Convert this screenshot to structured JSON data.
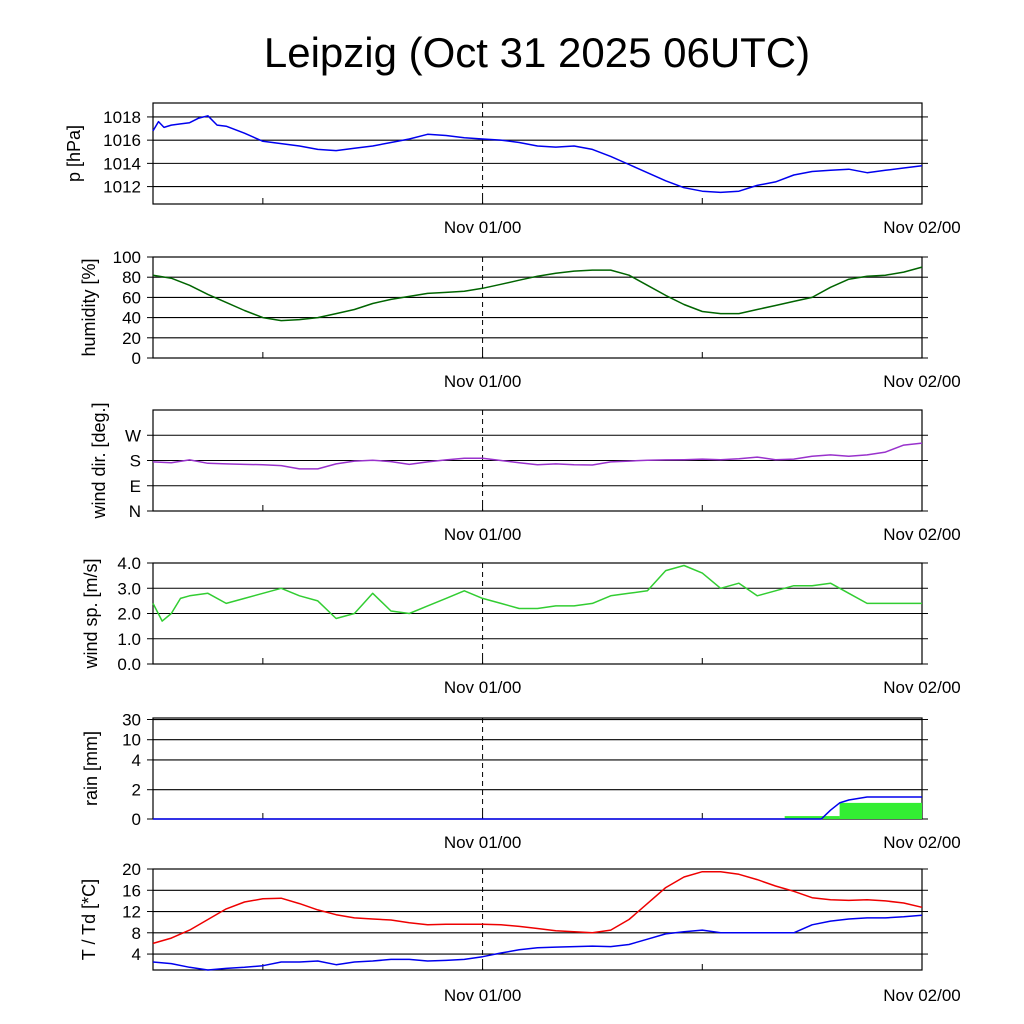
{
  "chart_data": {
    "title": "Leipzig (Oct 31 2025 06UTC)",
    "x_axis": {
      "range_hours": [
        0,
        42
      ],
      "day_boundary_hour": 18,
      "tick_hours": [
        6,
        18,
        30,
        42
      ],
      "labels": [
        {
          "hour": 18,
          "text": "Nov 01/00"
        },
        {
          "hour": 42,
          "text": "Nov 02/00"
        }
      ]
    },
    "panels": [
      {
        "id": "pressure",
        "type": "line",
        "ylabel": "p [hPa]",
        "ylim": [
          1010.5,
          1019.2
        ],
        "grid": [
          1012,
          1014,
          1016,
          1018
        ],
        "ticks": [
          {
            "v": 1018,
            "t": "1018"
          },
          {
            "v": 1016,
            "t": "1016"
          },
          {
            "v": 1014,
            "t": "1014"
          },
          {
            "v": 1012,
            "t": "1012"
          }
        ],
        "series": [
          {
            "name": "pressure",
            "color": "#0000ee",
            "x": [
              0,
              0.3,
              0.6,
              1,
              1.5,
              2,
              2.5,
              3,
              3.5,
              4,
              5,
              6,
              7,
              8,
              9,
              10,
              11,
              12,
              13,
              14,
              15,
              16,
              17,
              18,
              19,
              20,
              21,
              22,
              23,
              24,
              25,
              26,
              27,
              28,
              29,
              30,
              31,
              32,
              33,
              34,
              35,
              36,
              37,
              38,
              39,
              40,
              41,
              42
            ],
            "values": [
              1016.8,
              1017.6,
              1017.1,
              1017.3,
              1017.4,
              1017.5,
              1017.9,
              1018.1,
              1017.3,
              1017.2,
              1016.6,
              1015.9,
              1015.7,
              1015.5,
              1015.2,
              1015.1,
              1015.3,
              1015.5,
              1015.8,
              1016.1,
              1016.5,
              1016.4,
              1016.2,
              1016.1,
              1016.0,
              1015.8,
              1015.5,
              1015.4,
              1015.5,
              1015.2,
              1014.6,
              1013.9,
              1013.2,
              1012.5,
              1011.9,
              1011.6,
              1011.5,
              1011.6,
              1012.1,
              1012.4,
              1013.0,
              1013.3,
              1013.4,
              1013.5,
              1013.2,
              1013.4,
              1013.6,
              1013.8
            ]
          }
        ]
      },
      {
        "id": "humidity",
        "type": "line",
        "ylabel": "humidity [%]",
        "ylim": [
          0,
          100
        ],
        "grid": [
          20,
          40,
          60,
          80,
          100
        ],
        "ticks": [
          {
            "v": 100,
            "t": "100"
          },
          {
            "v": 80,
            "t": "80"
          },
          {
            "v": 60,
            "t": "60"
          },
          {
            "v": 40,
            "t": "40"
          },
          {
            "v": 20,
            "t": "20"
          },
          {
            "v": 0,
            "t": "0"
          }
        ],
        "series": [
          {
            "name": "humidity",
            "color": "#006400",
            "x": [
              0,
              1,
              2,
              3,
              4,
              5,
              6,
              7,
              8,
              9,
              10,
              11,
              12,
              13,
              14,
              15,
              16,
              17,
              18,
              19,
              20,
              21,
              22,
              23,
              24,
              25,
              26,
              27,
              28,
              29,
              30,
              31,
              32,
              33,
              34,
              35,
              36,
              37,
              38,
              39,
              40,
              41,
              42
            ],
            "values": [
              82,
              79,
              72,
              63,
              55,
              47,
              40,
              37,
              38,
              40,
              44,
              48,
              54,
              58,
              61,
              64,
              65,
              66,
              69,
              73,
              77,
              81,
              84,
              86,
              87,
              87,
              82,
              72,
              62,
              53,
              46,
              44,
              44,
              48,
              52,
              56,
              60,
              70,
              78,
              81,
              82,
              85,
              90
            ]
          }
        ]
      },
      {
        "id": "wind_dir",
        "type": "line",
        "ylabel": "wind dir. [deg.]",
        "ylim": [
          0,
          360
        ],
        "grid": [
          90,
          180,
          270
        ],
        "ticks": [
          {
            "v": 270,
            "t": "W"
          },
          {
            "v": 180,
            "t": "S"
          },
          {
            "v": 90,
            "t": "E"
          },
          {
            "v": 0,
            "t": "N"
          }
        ],
        "series": [
          {
            "name": "wind direction",
            "color": "#9932cc",
            "x": [
              0,
              1,
              2,
              3,
              4,
              5,
              6,
              7,
              8,
              9,
              10,
              11,
              12,
              13,
              14,
              15,
              16,
              17,
              18,
              19,
              20,
              21,
              22,
              23,
              24,
              25,
              26,
              27,
              28,
              29,
              30,
              31,
              32,
              33,
              34,
              35,
              36,
              37,
              38,
              39,
              40,
              41,
              42
            ],
            "values": [
              175,
              172,
              182,
              170,
              168,
              166,
              165,
              162,
              150,
              150,
              168,
              178,
              181,
              176,
              166,
              175,
              182,
              188,
              188,
              180,
              172,
              165,
              168,
              165,
              164,
              175,
              178,
              181,
              182,
              183,
              185,
              183,
              186,
              192,
              183,
              185,
              195,
              200,
              195,
              200,
              210,
              235,
              242
            ]
          }
        ]
      },
      {
        "id": "wind_speed",
        "type": "line",
        "ylabel": "wind sp. [m/s]",
        "ylim": [
          0,
          4.0
        ],
        "grid": [
          1.0,
          2.0,
          3.0
        ],
        "ticks": [
          {
            "v": 4.0,
            "t": "4.0"
          },
          {
            "v": 3.0,
            "t": "3.0"
          },
          {
            "v": 2.0,
            "t": "2.0"
          },
          {
            "v": 1.0,
            "t": "1.0"
          },
          {
            "v": 0.0,
            "t": "0.0"
          }
        ],
        "series": [
          {
            "name": "wind speed",
            "color": "#32cd32",
            "x": [
              0,
              0.5,
              1,
              1.5,
              2,
              3,
              4,
              5,
              6,
              7,
              8,
              9,
              10,
              11,
              11.5,
              12,
              13,
              14,
              15,
              16,
              17,
              18,
              19,
              20,
              21,
              22,
              23,
              24,
              25,
              26,
              27,
              28,
              29,
              30,
              31,
              32,
              33,
              34,
              35,
              36,
              37,
              38,
              39,
              40,
              41,
              42
            ],
            "values": [
              2.4,
              1.7,
              2.0,
              2.6,
              2.7,
              2.8,
              2.4,
              2.6,
              2.8,
              3.0,
              2.7,
              2.5,
              1.8,
              2.0,
              2.4,
              2.8,
              2.1,
              2.0,
              2.3,
              2.6,
              2.9,
              2.6,
              2.4,
              2.2,
              2.2,
              2.3,
              2.3,
              2.4,
              2.7,
              2.8,
              2.9,
              3.7,
              3.9,
              3.6,
              3.0,
              3.2,
              2.7,
              2.9,
              3.1,
              3.1,
              3.2,
              2.8,
              2.4,
              2.4,
              2.4,
              2.4
            ]
          }
        ]
      },
      {
        "id": "rain",
        "type": "line+bar",
        "ylabel": "rain [mm]",
        "scale": "nonlinear",
        "ticks": [
          {
            "v": 30,
            "t": "30"
          },
          {
            "v": 10,
            "t": "10"
          },
          {
            "v": 4,
            "t": "4"
          },
          {
            "v": 2,
            "t": "2"
          },
          {
            "v": 0,
            "t": "0"
          }
        ],
        "grid": [
          2,
          4,
          10,
          30
        ],
        "bars": {
          "name": "rain amount",
          "color": "#33ee33",
          "items": [
            {
              "x0": 34.5,
              "x1": 37.5,
              "value": 0.2
            },
            {
              "x0": 37.5,
              "x1": 42,
              "value": 1.1
            }
          ]
        },
        "series": [
          {
            "name": "accumulated rain",
            "color": "#0000ee",
            "x": [
              0,
              36.5,
              37,
              37.5,
              38,
              39,
              40,
              41,
              42
            ],
            "values": [
              0,
              0,
              0.6,
              1.1,
              1.3,
              1.5,
              1.5,
              1.5,
              1.5
            ]
          }
        ]
      },
      {
        "id": "temperature",
        "type": "line",
        "ylabel": "T / Td [*C]",
        "ylim": [
          1,
          20
        ],
        "grid": [
          4,
          8,
          12,
          16,
          20
        ],
        "ticks": [
          {
            "v": 20,
            "t": "20"
          },
          {
            "v": 16,
            "t": "16"
          },
          {
            "v": 12,
            "t": "12"
          },
          {
            "v": 8,
            "t": "8"
          },
          {
            "v": 4,
            "t": "4"
          }
        ],
        "series": [
          {
            "name": "T",
            "color": "#ee0000",
            "x": [
              0,
              1,
              2,
              3,
              4,
              5,
              6,
              7,
              8,
              9,
              10,
              11,
              12,
              13,
              14,
              15,
              16,
              17,
              18,
              19,
              20,
              21,
              22,
              23,
              24,
              25,
              26,
              27,
              28,
              29,
              30,
              31,
              32,
              33,
              34,
              35,
              36,
              37,
              38,
              39,
              40,
              41,
              42
            ],
            "values": [
              6.0,
              7.0,
              8.5,
              10.5,
              12.5,
              13.8,
              14.4,
              14.5,
              13.5,
              12.3,
              11.4,
              10.8,
              10.6,
              10.4,
              9.9,
              9.5,
              9.6,
              9.6,
              9.6,
              9.5,
              9.2,
              8.8,
              8.4,
              8.2,
              8.0,
              8.5,
              10.5,
              13.5,
              16.5,
              18.5,
              19.5,
              19.5,
              19.0,
              18.0,
              16.8,
              15.8,
              14.6,
              14.2,
              14.1,
              14.2,
              14.0,
              13.6,
              12.8
            ]
          },
          {
            "name": "Td",
            "color": "#0000ee",
            "x": [
              0,
              1,
              2,
              3,
              4,
              5,
              6,
              7,
              8,
              9,
              10,
              11,
              12,
              13,
              14,
              15,
              16,
              17,
              18,
              19,
              20,
              21,
              22,
              23,
              24,
              25,
              26,
              27,
              28,
              29,
              30,
              31,
              32,
              33,
              34,
              35,
              36,
              37,
              38,
              39,
              40,
              41,
              42
            ],
            "values": [
              2.5,
              2.2,
              1.5,
              1.0,
              1.3,
              1.5,
              1.8,
              2.5,
              2.5,
              2.7,
              2.0,
              2.5,
              2.7,
              3.0,
              3.0,
              2.7,
              2.8,
              3.0,
              3.5,
              4.2,
              4.8,
              5.2,
              5.3,
              5.4,
              5.5,
              5.4,
              5.8,
              6.8,
              7.8,
              8.2,
              8.5,
              8.0,
              8.0,
              8.0,
              8.0,
              8.0,
              9.5,
              10.2,
              10.6,
              10.8,
              10.8,
              11.0,
              11.3
            ]
          }
        ]
      }
    ]
  }
}
